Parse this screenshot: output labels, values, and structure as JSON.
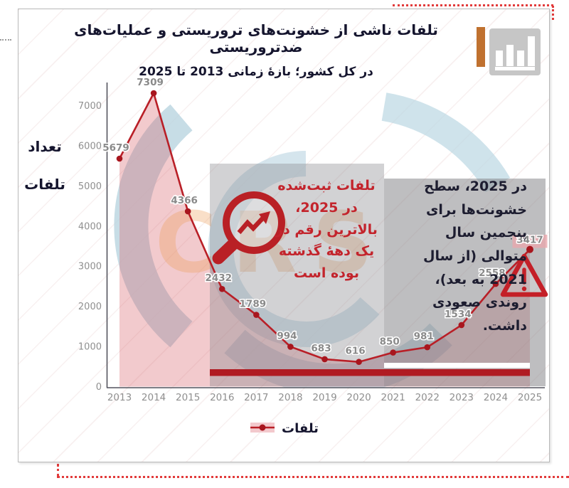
{
  "header": {
    "title_line1": "تلفات ناشی از خشونت‌های تروریستی و عملیات‌های ضدتروریستی",
    "title_line2": "در کل کشور؛ بازهٔ زمانی 2013 تا 2025",
    "icon": "bar-chart-icon"
  },
  "y_axis_title": "تعداد\nتلفات",
  "legend": {
    "label": "تلفات"
  },
  "watermark": "CRS",
  "annotations": {
    "highlight_red": "تلفات ثبت‌شده\nدر 2025،\nبالاترین رقم در\nیک دهۀ گذشته\nبوده است",
    "note_dark": "در 2025، سطح\nخشونت‌ها برای\nپنجمین سال\nمتوالی (از سال\n2021 به بعد)،\nروندی صعودی\nداشت.",
    "icons": [
      "trend-magnifier-icon",
      "warning-triangle-icon"
    ]
  },
  "colors": {
    "line_red": "#b91f27",
    "point_red": "#a8161e",
    "area_pink": "rgba(216,90,100,0.32)",
    "bar_dark_red": "#b01b22",
    "annotation_red_text": "#c3242c",
    "title_navy": "#15152e",
    "box_gray_1": "rgba(138,138,142,0.38)",
    "box_gray_2": "rgba(125,125,130,0.50)",
    "swirl_blue": "#b9d4e0",
    "accent_orange": "#c0712f",
    "dotted_red": "#e23b3b",
    "peak_label_bg": "#e8a7ac"
  },
  "chart_data": {
    "type": "line",
    "title": "تلفات ناشی از خشونت‌های تروریستی و عملیات‌های ضدتروریستی در کل کشور؛ بازهٔ زمانی 2013 تا 2025",
    "categories": [
      "2013",
      "2014",
      "2015",
      "2016",
      "2017",
      "2018",
      "2019",
      "2020",
      "2021",
      "2022",
      "2023",
      "2024",
      "2025"
    ],
    "series": [
      {
        "name": "تلفات",
        "values": [
          5679,
          7309,
          4366,
          2432,
          1789,
          994,
          683,
          616,
          850,
          981,
          1534,
          2558,
          3417
        ]
      }
    ],
    "xlabel": "",
    "ylabel": "تعداد تلفات",
    "ylim": [
      0,
      7500
    ],
    "yticks": [
      0,
      1000,
      2000,
      3000,
      4000,
      5000,
      6000,
      7000
    ],
    "grid": false,
    "legend_position": "bottom",
    "data_labels": true,
    "peak_year": "2025",
    "peak_value": 3417
  }
}
